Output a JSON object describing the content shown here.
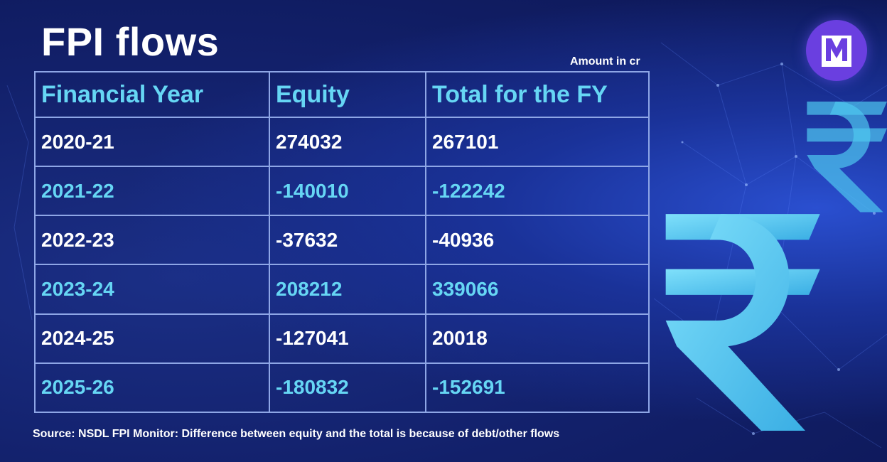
{
  "title": "FPI flows",
  "unit_note": "Amount in cr",
  "logo_letter": "M",
  "table": {
    "headers": [
      "Financial Year",
      "Equity",
      "Total for the FY"
    ],
    "rows": [
      [
        "2020-21",
        "274032",
        "267101"
      ],
      [
        "2021-22",
        "-140010",
        "-122242"
      ],
      [
        "2022-23",
        "-37632",
        "-40936"
      ],
      [
        "2023-24",
        "208212",
        "339066"
      ],
      [
        "2024-25",
        "-127041",
        "20018"
      ],
      [
        "2025-26",
        "-180832",
        "-152691"
      ]
    ]
  },
  "source": "Source: NSDL FPI Monitor: Difference between equity and the total is because of debt/other flows",
  "decor": {
    "rupee_symbol": "rupee-icon",
    "accent": "#66d6f4",
    "logo_color": "#6a3fe0"
  }
}
